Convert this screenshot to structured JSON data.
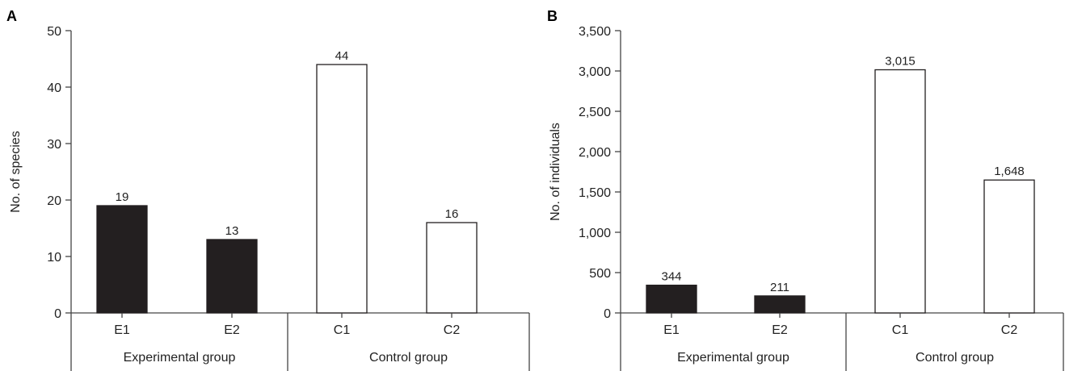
{
  "chart_data": [
    {
      "type": "bar",
      "panel": "A",
      "ylabel": "No. of species",
      "ylim": [
        0,
        50
      ],
      "yticks": [
        0,
        10,
        20,
        30,
        40,
        50
      ],
      "ytick_labels": [
        "0",
        "10",
        "20",
        "30",
        "40",
        "50"
      ],
      "categories": [
        "E1",
        "E2",
        "C1",
        "C2"
      ],
      "values": [
        19,
        13,
        44,
        16
      ],
      "data_labels": [
        "19",
        "13",
        "44",
        "16"
      ],
      "groups": [
        {
          "label": "Experimental group",
          "members": [
            "E1",
            "E2"
          ],
          "fill": "#231f20"
        },
        {
          "label": "Control group",
          "members": [
            "C1",
            "C2"
          ],
          "fill": "#ffffff"
        }
      ]
    },
    {
      "type": "bar",
      "panel": "B",
      "ylabel": "No. of individuals",
      "ylim": [
        0,
        3500
      ],
      "yticks": [
        0,
        500,
        1000,
        1500,
        2000,
        2500,
        3000,
        3500
      ],
      "ytick_labels": [
        "0",
        "500",
        "1,000",
        "1,500",
        "2,000",
        "2,500",
        "3,000",
        "3,500"
      ],
      "categories": [
        "E1",
        "E2",
        "C1",
        "C2"
      ],
      "values": [
        344,
        211,
        3015,
        1648
      ],
      "data_labels": [
        "344",
        "211",
        "3,015",
        "1,648"
      ],
      "groups": [
        {
          "label": "Experimental group",
          "members": [
            "E1",
            "E2"
          ],
          "fill": "#231f20"
        },
        {
          "label": "Control group",
          "members": [
            "C1",
            "C2"
          ],
          "fill": "#ffffff"
        }
      ]
    }
  ]
}
